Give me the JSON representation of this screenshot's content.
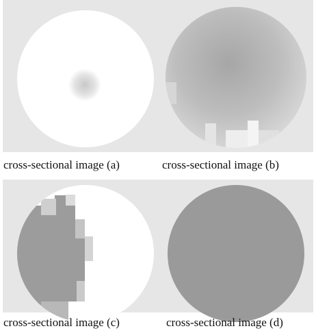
{
  "panels": [
    {
      "caption": "cross-sectional image (a)"
    },
    {
      "caption": "cross-sectional image (b)"
    },
    {
      "caption": "cross-sectional image (c)"
    },
    {
      "caption": "cross-sectional image (d)"
    }
  ]
}
